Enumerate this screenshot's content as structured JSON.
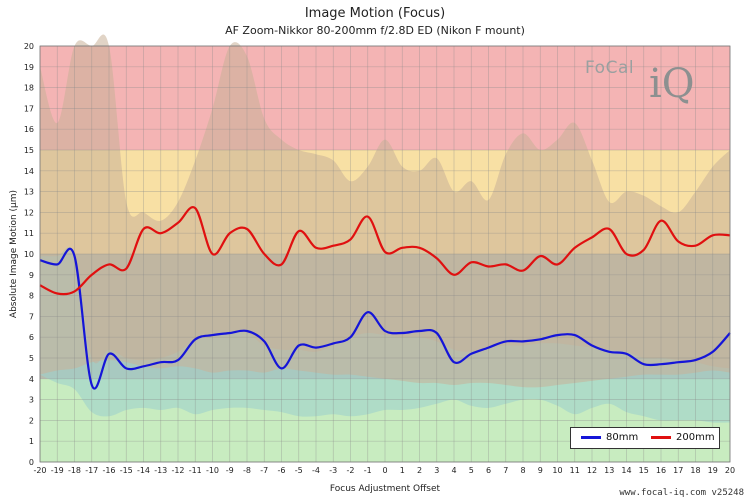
{
  "title": "Image Motion (Focus)",
  "subtitle": "AF Zoom-Nikkor 80-200mm f/2.8D ED (Nikon F mount)",
  "footer": "www.focal-iq.com  v25248",
  "logo": {
    "text": "FoCal",
    "mark": "iQ"
  },
  "colors": {
    "zone_red": "#f4b4b4",
    "zone_yellow": "#f8e0a4",
    "zone_gray": "#b6bcae",
    "zone_green": "#c8ecc0",
    "band_80mm": "#9ed2cc",
    "band_200mm": "#c8b098",
    "series_80mm": "#1515d8",
    "series_200mm": "#e01010"
  },
  "chart_data": {
    "type": "line",
    "xlabel": "Focus Adjustment Offset",
    "ylabel": "Absolute Image Motion (µm)",
    "xlim": [
      -20,
      20
    ],
    "ylim": [
      0,
      20
    ],
    "x_ticks": [
      -20,
      -19,
      -18,
      -17,
      -16,
      -15,
      -14,
      -13,
      -12,
      -11,
      -10,
      -9,
      -8,
      -7,
      -6,
      -5,
      -4,
      -3,
      -2,
      -1,
      0,
      1,
      2,
      3,
      4,
      5,
      6,
      7,
      8,
      9,
      10,
      11,
      12,
      13,
      14,
      15,
      16,
      17,
      18,
      19,
      20
    ],
    "y_ticks": [
      0,
      1,
      2,
      3,
      4,
      5,
      6,
      7,
      8,
      9,
      10,
      11,
      12,
      13,
      14,
      15,
      16,
      17,
      18,
      19,
      20
    ],
    "grid": true,
    "legend_position": "bottom-right",
    "zones": [
      {
        "from": 0,
        "to": 4,
        "color": "green"
      },
      {
        "from": 4,
        "to": 10,
        "color": "gray"
      },
      {
        "from": 10,
        "to": 15,
        "color": "yellow"
      },
      {
        "from": 15,
        "to": 20,
        "color": "red"
      }
    ],
    "x": [
      -20,
      -19,
      -18,
      -17,
      -16,
      -15,
      -14,
      -13,
      -12,
      -11,
      -10,
      -9,
      -8,
      -7,
      -6,
      -5,
      -4,
      -3,
      -2,
      -1,
      0,
      1,
      2,
      3,
      4,
      5,
      6,
      7,
      8,
      9,
      10,
      11,
      12,
      13,
      14,
      15,
      16,
      17,
      18,
      19,
      20
    ],
    "series": [
      {
        "name": "80mm",
        "values": [
          9.7,
          9.5,
          9.9,
          3.7,
          5.2,
          4.5,
          4.6,
          4.8,
          4.9,
          5.9,
          6.1,
          6.2,
          6.3,
          5.8,
          4.5,
          5.6,
          5.5,
          5.7,
          6.0,
          7.2,
          6.3,
          6.2,
          6.3,
          6.2,
          4.8,
          5.2,
          5.5,
          5.8,
          5.8,
          5.9,
          6.1,
          6.1,
          5.6,
          5.3,
          5.2,
          4.7,
          4.7,
          4.8,
          4.9,
          5.3,
          6.2
        ],
        "upper": [
          9.9,
          9.9,
          10.0,
          5.0,
          5.4,
          5.0,
          4.9,
          5.0,
          5.3,
          5.9,
          6.0,
          6.2,
          6.2,
          5.6,
          5.4,
          5.4,
          5.3,
          5.6,
          6.0,
          6.2,
          6.1,
          6.0,
          6.0,
          5.8,
          5.4,
          5.3,
          5.5,
          5.6,
          5.6,
          5.7,
          5.7,
          5.6,
          5.5,
          5.4,
          5.3,
          5.0,
          5.0,
          4.9,
          4.8,
          4.6,
          4.5
        ],
        "lower": [
          4.2,
          3.8,
          3.5,
          2.4,
          2.2,
          2.5,
          2.6,
          2.5,
          2.6,
          2.3,
          2.5,
          2.6,
          2.6,
          2.5,
          2.4,
          2.2,
          2.2,
          2.3,
          2.2,
          2.3,
          2.5,
          2.5,
          2.6,
          2.8,
          3.0,
          2.7,
          2.6,
          2.8,
          3.0,
          3.0,
          2.7,
          2.3,
          2.6,
          2.8,
          2.4,
          2.2,
          2.0,
          2.0,
          2.0,
          1.9,
          1.9
        ]
      },
      {
        "name": "200mm",
        "values": [
          8.5,
          8.1,
          8.2,
          9.0,
          9.5,
          9.3,
          11.2,
          11.0,
          11.5,
          12.2,
          10.0,
          11.0,
          11.2,
          10.0,
          9.5,
          11.1,
          10.3,
          10.4,
          10.7,
          11.8,
          10.1,
          10.3,
          10.3,
          9.8,
          9.0,
          9.6,
          9.4,
          9.5,
          9.2,
          9.9,
          9.5,
          10.3,
          10.8,
          11.2,
          10.0,
          10.2,
          11.6,
          10.6,
          10.4,
          10.9,
          10.9
        ],
        "upper": [
          19.0,
          16.3,
          20.0,
          20.0,
          20.0,
          12.5,
          12.0,
          11.6,
          12.5,
          14.5,
          17.0,
          20.0,
          19.5,
          16.5,
          15.5,
          15.0,
          14.8,
          14.5,
          13.5,
          14.2,
          15.5,
          14.2,
          14.0,
          14.6,
          13.0,
          13.5,
          12.6,
          14.8,
          15.8,
          15.0,
          15.5,
          16.3,
          14.5,
          12.5,
          13.0,
          12.8,
          12.3,
          12.0,
          13.0,
          14.2,
          15.0
        ],
        "lower": [
          4.2,
          4.4,
          4.5,
          4.8,
          4.9,
          4.8,
          4.6,
          4.5,
          4.6,
          4.5,
          4.3,
          4.4,
          4.4,
          4.3,
          4.5,
          4.4,
          4.3,
          4.2,
          4.2,
          4.1,
          4.0,
          3.9,
          3.8,
          3.8,
          3.7,
          3.8,
          3.8,
          3.7,
          3.6,
          3.6,
          3.7,
          3.8,
          3.9,
          4.0,
          4.1,
          4.2,
          4.2,
          4.2,
          4.3,
          4.4,
          4.3
        ]
      }
    ]
  }
}
